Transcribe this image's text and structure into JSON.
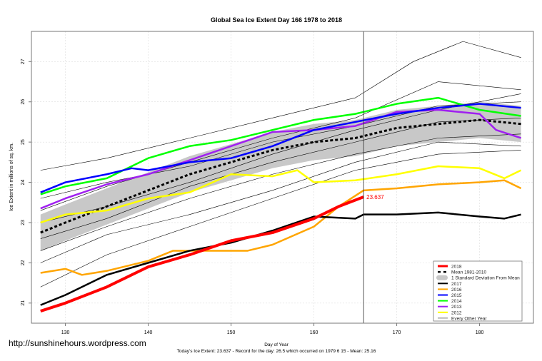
{
  "chart_data": {
    "type": "line",
    "title": "Global Sea Ice Extent Day 166 1978 to 2018",
    "xlabel": "Day of Year",
    "ylabel": "Ice Extent in millions of sq. km.",
    "xlim": [
      125.9,
      186.5
    ],
    "ylim": [
      20.5,
      27.75
    ],
    "xticks": [
      130,
      140,
      150,
      160,
      170,
      180
    ],
    "yticks": [
      21,
      22,
      23,
      24,
      25,
      26,
      27
    ],
    "grid": true,
    "current_day": 166,
    "end_label": "23.637",
    "legend_position": "bottom-right",
    "footer": "Today's Ice Extent: 23.637  - Record for the day: 26.5 which occurred on 1979 6 15  - Mean: 25.16",
    "watermark": "http://sunshinehours.wordpress.com",
    "sd_band": {
      "label": "1 Standard Deviation From Mean",
      "color": "#c8c8c8",
      "width": 0.45
    },
    "series": [
      {
        "name": "Every Other Year",
        "color": "#000000",
        "lw": 0.6,
        "kind": "other",
        "x": [
          127,
          135,
          145,
          155,
          165,
          175,
          185
        ],
        "y": [
          23.3,
          23.9,
          24.5,
          25.1,
          25.6,
          26.5,
          26.3
        ]
      },
      {
        "name": "Every Other Year",
        "color": "#000000",
        "lw": 0.6,
        "kind": "other",
        "x": [
          127,
          135,
          145,
          155,
          165,
          172,
          178,
          185
        ],
        "y": [
          24.3,
          24.6,
          25.1,
          25.6,
          26.1,
          27.0,
          27.5,
          27.1
        ]
      },
      {
        "name": "Every Other Year",
        "color": "#000000",
        "lw": 0.6,
        "kind": "other",
        "x": [
          127,
          135,
          145,
          155,
          165,
          175,
          185
        ],
        "y": [
          22.3,
          22.9,
          23.6,
          24.2,
          24.7,
          25.1,
          25.2
        ]
      },
      {
        "name": "Every Other Year",
        "color": "#000000",
        "lw": 0.6,
        "kind": "other",
        "x": [
          127,
          135,
          145,
          155,
          165,
          175,
          185
        ],
        "y": [
          22.0,
          22.7,
          23.2,
          23.8,
          24.5,
          25.0,
          24.9
        ]
      },
      {
        "name": "Every Other Year",
        "color": "#000000",
        "lw": 0.6,
        "kind": "other",
        "x": [
          127,
          135,
          145,
          155,
          165,
          175,
          185
        ],
        "y": [
          23.0,
          23.4,
          24.0,
          24.7,
          25.3,
          25.8,
          26.2
        ]
      },
      {
        "name": "Every Other Year",
        "color": "#000000",
        "lw": 0.6,
        "kind": "other",
        "x": [
          127,
          135,
          145,
          155,
          165,
          175,
          185
        ],
        "y": [
          22.6,
          23.1,
          23.9,
          24.5,
          25.0,
          25.5,
          25.6
        ]
      },
      {
        "name": "Every Other Year",
        "color": "#000000",
        "lw": 0.6,
        "kind": "other",
        "x": [
          127,
          135,
          145,
          155,
          165,
          175,
          185
        ],
        "y": [
          21.4,
          22.2,
          22.9,
          23.6,
          24.3,
          24.7,
          24.8
        ]
      },
      {
        "name": "Every Other Year",
        "color": "#000000",
        "lw": 0.6,
        "kind": "other",
        "x": [
          127,
          135,
          145,
          155,
          165,
          175,
          185
        ],
        "y": [
          23.6,
          24.0,
          24.4,
          25.0,
          25.4,
          25.9,
          26.0
        ]
      },
      {
        "name": "Mean 1981-2010",
        "color": "#000000",
        "lw": 3,
        "kind": "mean",
        "x": [
          127,
          130,
          135,
          140,
          145,
          150,
          155,
          160,
          165,
          170,
          175,
          180,
          185
        ],
        "y": [
          22.75,
          23.0,
          23.4,
          23.8,
          24.2,
          24.5,
          24.8,
          25.0,
          25.1,
          25.35,
          25.45,
          25.55,
          25.45
        ]
      },
      {
        "name": "2012",
        "color": "#ffff00",
        "lw": 2.5,
        "x": [
          127,
          130,
          135,
          140,
          145,
          150,
          155,
          158,
          160,
          165,
          170,
          175,
          180,
          183,
          185
        ],
        "y": [
          23.0,
          23.2,
          23.3,
          23.6,
          23.75,
          24.2,
          24.15,
          24.3,
          24.0,
          24.05,
          24.2,
          24.4,
          24.35,
          24.1,
          24.3
        ]
      },
      {
        "name": "2013",
        "color": "#a020f0",
        "lw": 2.5,
        "x": [
          127,
          130,
          135,
          140,
          145,
          150,
          155,
          160,
          165,
          170,
          175,
          180,
          182,
          185
        ],
        "y": [
          23.35,
          23.6,
          23.95,
          24.2,
          24.55,
          24.9,
          25.25,
          25.3,
          25.4,
          25.75,
          25.8,
          25.7,
          25.3,
          25.1
        ]
      },
      {
        "name": "2014",
        "color": "#00ff00",
        "lw": 2.5,
        "x": [
          127,
          130,
          135,
          140,
          145,
          150,
          155,
          160,
          165,
          170,
          175,
          180,
          185
        ],
        "y": [
          23.7,
          23.9,
          24.1,
          24.6,
          24.9,
          25.05,
          25.3,
          25.55,
          25.7,
          25.95,
          26.1,
          25.8,
          25.65
        ]
      },
      {
        "name": "2015",
        "color": "#0000ff",
        "lw": 2.5,
        "x": [
          127,
          130,
          135,
          138,
          140,
          145,
          150,
          155,
          160,
          165,
          170,
          175,
          180,
          185
        ],
        "y": [
          23.75,
          24.0,
          24.2,
          24.35,
          24.3,
          24.5,
          24.6,
          24.9,
          25.3,
          25.5,
          25.7,
          25.85,
          25.95,
          25.85
        ]
      },
      {
        "name": "2016",
        "color": "#ffa500",
        "lw": 2.5,
        "x": [
          127,
          130,
          132,
          135,
          140,
          143,
          148,
          152,
          155,
          160,
          163,
          166,
          170,
          175,
          180,
          183,
          185
        ],
        "y": [
          21.75,
          21.85,
          21.7,
          21.8,
          22.05,
          22.3,
          22.3,
          22.3,
          22.45,
          22.9,
          23.4,
          23.8,
          23.85,
          23.95,
          24.0,
          24.05,
          23.85
        ]
      },
      {
        "name": "2017",
        "color": "#000000",
        "lw": 2.5,
        "x": [
          127,
          130,
          135,
          140,
          145,
          150,
          155,
          160,
          165,
          166,
          170,
          175,
          180,
          183,
          185
        ],
        "y": [
          20.95,
          21.2,
          21.7,
          22.0,
          22.3,
          22.5,
          22.8,
          23.15,
          23.1,
          23.2,
          23.2,
          23.25,
          23.15,
          23.1,
          23.2
        ]
      },
      {
        "name": "2018",
        "color": "#ff0000",
        "lw": 4,
        "x": [
          127,
          130,
          135,
          140,
          145,
          150,
          155,
          160,
          163,
          166
        ],
        "y": [
          20.8,
          21.0,
          21.4,
          21.9,
          22.2,
          22.55,
          22.75,
          23.1,
          23.4,
          23.637
        ]
      }
    ],
    "legend": [
      {
        "label": "2018",
        "color": "#ff0000",
        "style": "thick"
      },
      {
        "label": "Mean 1981-2010",
        "color": "#000000",
        "style": "dash"
      },
      {
        "label": "1 Standard Deviation From Mean",
        "color": "#c8c8c8",
        "style": "band"
      },
      {
        "label": "2017",
        "color": "#000000",
        "style": "line"
      },
      {
        "label": "2016",
        "color": "#ffa500",
        "style": "line"
      },
      {
        "label": "2015",
        "color": "#0000ff",
        "style": "line"
      },
      {
        "label": "2014",
        "color": "#00ff00",
        "style": "line"
      },
      {
        "label": "2013",
        "color": "#a020f0",
        "style": "line"
      },
      {
        "label": "2012",
        "color": "#ffff00",
        "style": "line"
      },
      {
        "label": "Every Other Year",
        "color": "#555555",
        "style": "thin"
      }
    ]
  }
}
